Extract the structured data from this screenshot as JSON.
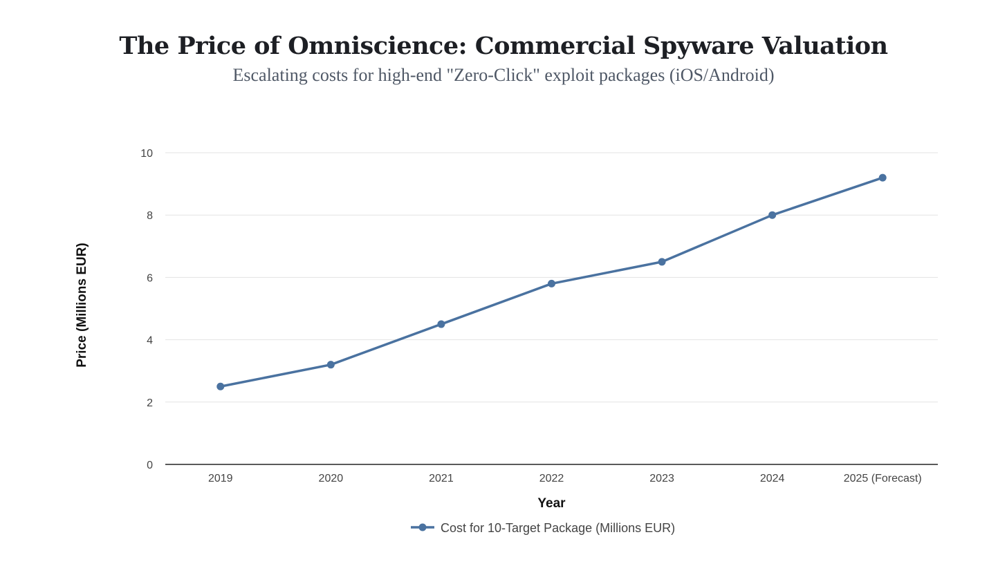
{
  "chart_data": {
    "type": "line",
    "title": "The Price of Omniscience: Commercial Spyware Valuation",
    "subtitle": "Escalating costs for high-end \"Zero-Click\" exploit packages (iOS/Android)",
    "xlabel": "Year",
    "ylabel": "Price (Millions EUR)",
    "categories": [
      "2019",
      "2020",
      "2021",
      "2022",
      "2023",
      "2024",
      "2025 (Forecast)"
    ],
    "series": [
      {
        "name": "Cost for 10-Target Package (Millions EUR)",
        "values": [
          2.5,
          3.2,
          4.5,
          5.8,
          6.5,
          8.0,
          9.2
        ],
        "color": "#4a72a0"
      }
    ],
    "ylim": [
      0,
      10
    ],
    "yticks": [
      0,
      2,
      4,
      6,
      8,
      10
    ],
    "grid": true,
    "legend": "bottom-center"
  }
}
